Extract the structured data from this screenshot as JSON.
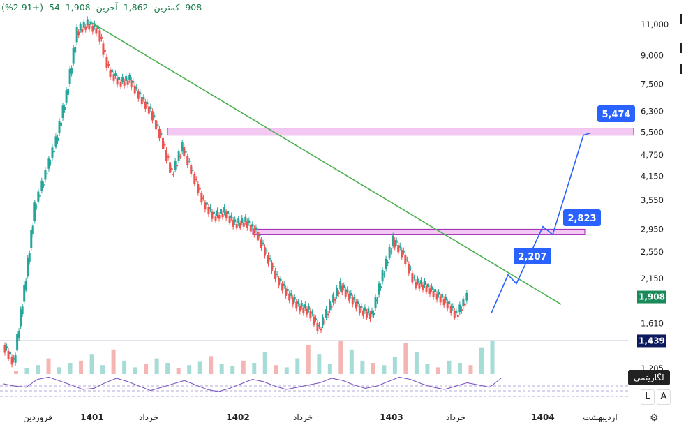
{
  "header": {
    "last_label": "آخرین",
    "last_value": "1,908",
    "change": "54",
    "change_pct": "(+2.91%)",
    "min_label": "کمترین",
    "min_value": "1,862",
    "cut_value": "908"
  },
  "controls": {
    "log_button": "L",
    "auto_button": "A",
    "tooltip": "لگاریتمی"
  },
  "colors": {
    "up": "#26a69a",
    "down": "#ef5350",
    "trendline": "#4caf50",
    "projection": "#2962ff",
    "zone_fill": "#f3c8f3",
    "zone_stroke": "#9c27b0",
    "rsi": "#7e57c2",
    "last_price_label": "#1b8a5a",
    "support_label": "#0d1b5e"
  },
  "chart_data": {
    "type": "candlestick",
    "y_scale": "log",
    "y_ticks": [
      "11,000",
      "9,000",
      "7,500",
      "6,300",
      "5,500",
      "4,750",
      "4,150",
      "3,550",
      "2,950",
      "2,550",
      "2,150",
      "1,610",
      "1,205"
    ],
    "y_tick_values": [
      11000,
      9000,
      7500,
      6300,
      5500,
      4750,
      4150,
      3550,
      2950,
      2550,
      2150,
      1610,
      1205
    ],
    "x_labels": [
      {
        "text": "فروردین",
        "bold": false
      },
      {
        "text": "1401",
        "bold": true
      },
      {
        "text": "خرداد",
        "bold": false
      },
      {
        "text": "1402",
        "bold": true
      },
      {
        "text": "خرداد",
        "bold": false
      },
      {
        "text": "1403",
        "bold": true
      },
      {
        "text": "خرداد",
        "bold": false
      },
      {
        "text": "1404",
        "bold": true
      },
      {
        "text": "اردیبهشت",
        "bold": false
      }
    ],
    "last_price": {
      "value": 1908,
      "label": "1,908"
    },
    "support_line": {
      "value": 1439,
      "label": "1,439"
    },
    "resistance_zones": [
      {
        "low": 5400,
        "high": 5650
      },
      {
        "low": 2850,
        "high": 2950
      }
    ],
    "price_path": [
      [
        0,
        1400
      ],
      [
        0.02,
        1250
      ],
      [
        0.04,
        2000
      ],
      [
        0.06,
        3400
      ],
      [
        0.08,
        4200
      ],
      [
        0.1,
        5200
      ],
      [
        0.12,
        7000
      ],
      [
        0.14,
        10500
      ],
      [
        0.16,
        11050
      ],
      [
        0.18,
        10600
      ],
      [
        0.2,
        8200
      ],
      [
        0.22,
        7600
      ],
      [
        0.24,
        7700
      ],
      [
        0.26,
        6900
      ],
      [
        0.28,
        6300
      ],
      [
        0.3,
        5300
      ],
      [
        0.32,
        4200
      ],
      [
        0.34,
        5000
      ],
      [
        0.36,
        4200
      ],
      [
        0.38,
        3500
      ],
      [
        0.4,
        3200
      ],
      [
        0.42,
        3300
      ],
      [
        0.44,
        3050
      ],
      [
        0.46,
        3100
      ],
      [
        0.48,
        2900
      ],
      [
        0.5,
        2500
      ],
      [
        0.52,
        2150
      ],
      [
        0.54,
        1950
      ],
      [
        0.56,
        1800
      ],
      [
        0.58,
        1750
      ],
      [
        0.6,
        1550
      ],
      [
        0.62,
        1800
      ],
      [
        0.64,
        2050
      ],
      [
        0.66,
        1900
      ],
      [
        0.68,
        1750
      ],
      [
        0.7,
        1700
      ],
      [
        0.72,
        2200
      ],
      [
        0.74,
        2750
      ],
      [
        0.76,
        2500
      ],
      [
        0.78,
        2100
      ],
      [
        0.8,
        2050
      ],
      [
        0.82,
        1950
      ],
      [
        0.84,
        1850
      ],
      [
        0.86,
        1700
      ],
      [
        0.88,
        1900
      ]
    ],
    "trendline": [
      [
        0.16,
        11100
      ],
      [
        0.99,
        1820
      ]
    ],
    "projection_path": [
      [
        0.88,
        1720
      ],
      [
        0.91,
        2200
      ],
      [
        0.93,
        2080
      ],
      [
        0.96,
        3000
      ],
      [
        0.98,
        2850
      ],
      [
        1.04,
        5400
      ],
      [
        1.06,
        5474
      ]
    ],
    "projection_labels": [
      {
        "text": "2,207",
        "value": 2207
      },
      {
        "text": "2,823",
        "value": 2823
      },
      {
        "text": "5,474",
        "value": 5474
      }
    ],
    "volume": [
      3,
      5,
      8,
      14,
      6,
      10,
      12,
      18,
      8,
      22,
      12,
      6,
      9,
      14,
      10,
      5,
      8,
      11,
      16,
      9,
      7,
      12,
      10,
      20,
      8,
      6,
      14,
      26,
      18,
      9,
      30,
      22,
      12,
      10,
      8,
      15,
      28,
      20,
      9,
      6,
      12,
      10,
      8,
      24,
      30
    ],
    "rsi": [
      50,
      46,
      44,
      58,
      62,
      55,
      48,
      40,
      42,
      52,
      60,
      54,
      46,
      38,
      44,
      50,
      56,
      48,
      40,
      36,
      42,
      50,
      58,
      54,
      46,
      40,
      44,
      48,
      52,
      60,
      56,
      48,
      42,
      46,
      54,
      62,
      58,
      50,
      44,
      40,
      46,
      52,
      48,
      44,
      60
    ]
  }
}
